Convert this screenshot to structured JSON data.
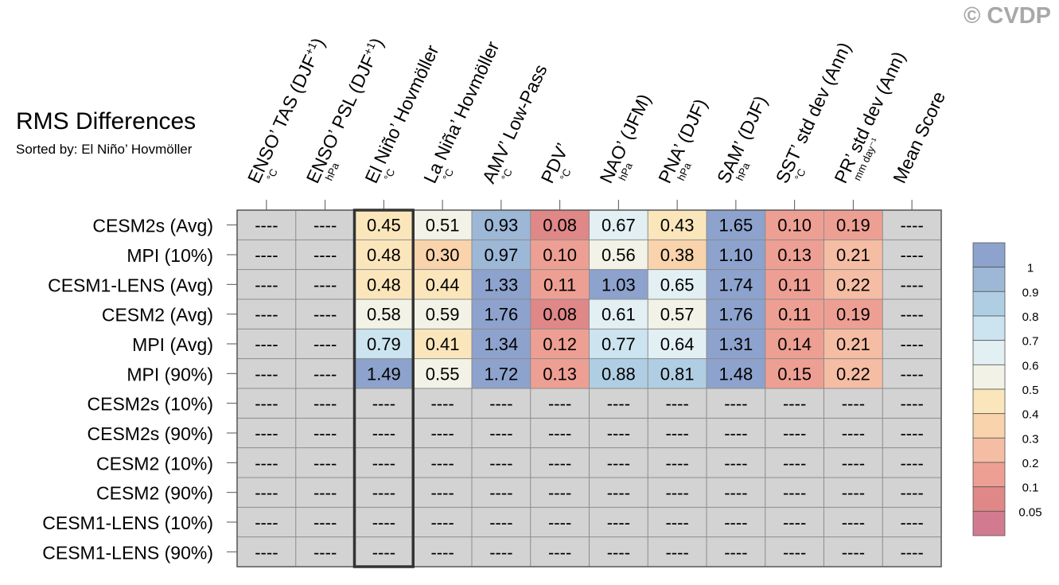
{
  "header": {
    "title": "RMS Differences",
    "subtitle": "Sorted by: El Niño’ Hovmöller",
    "copyright": "© CVDP"
  },
  "colors": {
    "missing": "#d3d3d3",
    "grid": "#8c8c8c",
    "highlight_border": "#333333",
    "colorbar": [
      "#d27b90",
      "#e08788",
      "#ee9f93",
      "#f5bda3",
      "#f8d3ab",
      "#fbe6bc",
      "#f2f2e6",
      "#e2f0f4",
      "#cbe4ef",
      "#b0cee3",
      "#9db7d6",
      "#8da2cd"
    ]
  },
  "chart_data": {
    "type": "heatmap",
    "title": "RMS Differences",
    "subtitle": "Sorted by: El Niño’ Hovmöller",
    "missing_label": "----",
    "highlight_column": 2,
    "columns": [
      {
        "label": "ENSO’ TAS (DJF",
        "sup": "+1",
        "close": ")",
        "unit": "°C"
      },
      {
        "label": "ENSO’ PSL (DJF",
        "sup": "+1",
        "close": ")",
        "unit": "hPa"
      },
      {
        "label": "El Niño’ Hovmöller",
        "sup": "",
        "close": "",
        "unit": "°C"
      },
      {
        "label": "La Niña’ Hovmöller",
        "sup": "",
        "close": "",
        "unit": "°C"
      },
      {
        "label": "AMV’ Low-Pass",
        "sup": "",
        "close": "",
        "unit": "°C"
      },
      {
        "label": "PDV’",
        "sup": "",
        "close": "",
        "unit": "°C"
      },
      {
        "label": "NAO’ (JFM)",
        "sup": "",
        "close": "",
        "unit": "hPa"
      },
      {
        "label": "PNA’ (DJF)",
        "sup": "",
        "close": "",
        "unit": "hPa"
      },
      {
        "label": "SAM’ (DJF)",
        "sup": "",
        "close": "",
        "unit": "hPa"
      },
      {
        "label": "SST’ std dev (Ann)",
        "sup": "",
        "close": "",
        "unit": "°C"
      },
      {
        "label": "PR’ std dev (Ann)",
        "sup": "",
        "close": "",
        "unit": "mm day⁻¹"
      },
      {
        "label": "Mean Score",
        "sup": "",
        "close": "",
        "unit": ""
      }
    ],
    "rows": [
      {
        "label": "CESM2s (Avg)",
        "values": [
          null,
          null,
          0.45,
          0.51,
          0.93,
          0.08,
          0.67,
          0.43,
          1.65,
          0.1,
          0.19,
          null
        ]
      },
      {
        "label": "MPI (10%)",
        "values": [
          null,
          null,
          0.48,
          0.3,
          0.97,
          0.1,
          0.56,
          0.38,
          1.1,
          0.13,
          0.21,
          null
        ]
      },
      {
        "label": "CESM1-LENS (Avg)",
        "values": [
          null,
          null,
          0.48,
          0.44,
          1.33,
          0.11,
          1.03,
          0.65,
          1.74,
          0.11,
          0.22,
          null
        ]
      },
      {
        "label": "CESM2 (Avg)",
        "values": [
          null,
          null,
          0.58,
          0.59,
          1.76,
          0.08,
          0.61,
          0.57,
          1.76,
          0.11,
          0.19,
          null
        ]
      },
      {
        "label": "MPI (Avg)",
        "values": [
          null,
          null,
          0.79,
          0.41,
          1.34,
          0.12,
          0.77,
          0.64,
          1.31,
          0.14,
          0.21,
          null
        ]
      },
      {
        "label": "MPI (90%)",
        "values": [
          null,
          null,
          1.49,
          0.55,
          1.72,
          0.13,
          0.88,
          0.81,
          1.48,
          0.15,
          0.22,
          null
        ]
      },
      {
        "label": "CESM2s (10%)",
        "values": [
          null,
          null,
          null,
          null,
          null,
          null,
          null,
          null,
          null,
          null,
          null,
          null
        ]
      },
      {
        "label": "CESM2s (90%)",
        "values": [
          null,
          null,
          null,
          null,
          null,
          null,
          null,
          null,
          null,
          null,
          null,
          null
        ]
      },
      {
        "label": "CESM2 (10%)",
        "values": [
          null,
          null,
          null,
          null,
          null,
          null,
          null,
          null,
          null,
          null,
          null,
          null
        ]
      },
      {
        "label": "CESM2 (90%)",
        "values": [
          null,
          null,
          null,
          null,
          null,
          null,
          null,
          null,
          null,
          null,
          null,
          null
        ]
      },
      {
        "label": "CESM1-LENS (10%)",
        "values": [
          null,
          null,
          null,
          null,
          null,
          null,
          null,
          null,
          null,
          null,
          null,
          null
        ]
      },
      {
        "label": "CESM1-LENS (90%)",
        "values": [
          null,
          null,
          null,
          null,
          null,
          null,
          null,
          null,
          null,
          null,
          null,
          null
        ]
      }
    ],
    "colorbar": {
      "levels": [
        0.05,
        0.1,
        0.2,
        0.3,
        0.4,
        0.5,
        0.6,
        0.7,
        0.8,
        0.9,
        1
      ],
      "labels": [
        "0.05",
        "0.1",
        "0.2",
        "0.3",
        "0.4",
        "0.5",
        "0.6",
        "0.7",
        "0.8",
        "0.9",
        "1"
      ]
    }
  }
}
